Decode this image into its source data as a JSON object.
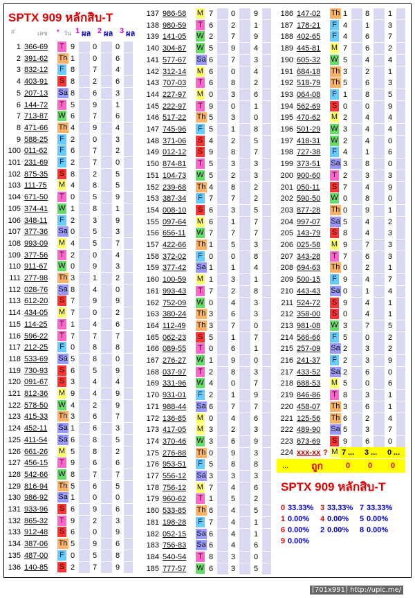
{
  "title": "SPTX 909 หลักสิบ-T",
  "title2": "SPTX 909 หลักสิบ-T",
  "header": {
    "hash": "#",
    "code": "เลข",
    "star": "*",
    "day": "วัน",
    "c1": "1",
    "r1": "ผล",
    "c2": "2",
    "r2": "ผล",
    "c3": "3",
    "r3": "ผล"
  },
  "day_colors": {
    "T": "#ff66cc",
    "Th": "#ffb266",
    "F": "#66ccff",
    "S": "#ff3333",
    "Sa": "#9999ff",
    "M": "#ffff66",
    "W": "#66dd66"
  },
  "rows1": [
    [
      "1",
      "366-69",
      "T",
      "9",
      "0",
      "0"
    ],
    [
      "2",
      "391-62",
      "Th",
      "1",
      "0",
      "6"
    ],
    [
      "3",
      "832-12",
      "F",
      "8",
      "7",
      "4"
    ],
    [
      "4",
      "403-91",
      "S",
      "8",
      "2",
      "6"
    ],
    [
      "5",
      "207-13",
      "Sa",
      "8",
      "6",
      "3"
    ],
    [
      "6",
      "144-72",
      "T",
      "5",
      "9",
      "1"
    ],
    [
      "7",
      "713-87",
      "W",
      "6",
      "7",
      "6"
    ],
    [
      "8",
      "471-66",
      "Th",
      "4",
      "9",
      "4"
    ],
    [
      "9",
      "588-25",
      "F",
      "2",
      "0",
      "3"
    ],
    [
      "100",
      "011-62",
      "F",
      "6",
      "7",
      "2"
    ],
    [
      "101",
      "231-69",
      "F",
      "2",
      "7",
      "0"
    ],
    [
      "102",
      "875-35",
      "S",
      "8",
      "2",
      "5"
    ],
    [
      "103",
      "111-75",
      "M",
      "4",
      "8",
      "5"
    ],
    [
      "104",
      "671-50",
      "T",
      "0",
      "5",
      "9"
    ],
    [
      "105",
      "374-41",
      "W",
      "1",
      "8",
      "1"
    ],
    [
      "106",
      "348-11",
      "F",
      "2",
      "3",
      "9"
    ],
    [
      "107",
      "377-36",
      "Sa",
      "0",
      "5",
      "3"
    ],
    [
      "108",
      "993-09",
      "M",
      "4",
      "5",
      "7"
    ],
    [
      "109",
      "377-56",
      "T",
      "2",
      "0",
      "4"
    ],
    [
      "110",
      "911-67",
      "W",
      "0",
      "9",
      "3"
    ],
    [
      "111",
      "277-98",
      "Th",
      "3",
      "1",
      "2"
    ],
    [
      "112",
      "028-76",
      "Sa",
      "8",
      "4",
      "0"
    ],
    [
      "113",
      "612-20",
      "S",
      "7",
      "9",
      "9"
    ],
    [
      "114",
      "434-05",
      "M",
      "7",
      "0",
      "2"
    ],
    [
      "115",
      "114-25",
      "T",
      "1",
      "4",
      "6"
    ],
    [
      "116",
      "596-22",
      "T",
      "7",
      "7",
      "7"
    ],
    [
      "117",
      "212-25",
      "F",
      "0",
      "8",
      "8"
    ],
    [
      "118",
      "533-69",
      "Sa",
      "5",
      "8",
      "0"
    ],
    [
      "119",
      "730-93",
      "S",
      "6",
      "5",
      "9"
    ],
    [
      "120",
      "091-67",
      "S",
      "3",
      "4",
      "4"
    ],
    [
      "121",
      "812-36",
      "M",
      "9",
      "4",
      "9"
    ],
    [
      "122",
      "578-50",
      "W",
      "4",
      "2",
      "9"
    ],
    [
      "123",
      "415-33",
      "Th",
      "3",
      "6",
      "7"
    ],
    [
      "124",
      "452-11",
      "Sa",
      "1",
      "6",
      "3"
    ],
    [
      "125",
      "411-54",
      "Sa",
      "6",
      "8",
      "5"
    ],
    [
      "126",
      "661-26",
      "M",
      "5",
      "8",
      "2"
    ],
    [
      "127",
      "456-15",
      "T",
      "9",
      "6",
      "6"
    ],
    [
      "128",
      "542-66",
      "W",
      "8",
      "7",
      "7"
    ],
    [
      "129",
      "816-94",
      "Th",
      "5",
      "6",
      "5"
    ],
    [
      "130",
      "986-92",
      "Sa",
      "1",
      "0",
      "0"
    ],
    [
      "131",
      "933-96",
      "S",
      "6",
      "9",
      "6"
    ],
    [
      "132",
      "865-32",
      "T",
      "9",
      "2",
      "3"
    ],
    [
      "133",
      "912-48",
      "S",
      "6",
      "0",
      "9"
    ],
    [
      "134",
      "387-06",
      "Th",
      "5",
      "9",
      "6"
    ],
    [
      "135",
      "487-00",
      "F",
      "0",
      "5",
      "8"
    ],
    [
      "136",
      "140-85",
      "S",
      "2",
      "7",
      "9"
    ]
  ],
  "rows2": [
    [
      "137",
      "986-58",
      "M",
      "7",
      "0",
      "9"
    ],
    [
      "138",
      "980-59",
      "T",
      "6",
      "2",
      "1"
    ],
    [
      "139",
      "141-05",
      "W",
      "2",
      "7",
      "9"
    ],
    [
      "140",
      "304-87",
      "W",
      "5",
      "9",
      "4"
    ],
    [
      "141",
      "577-67",
      "Sa",
      "6",
      "7",
      "3"
    ],
    [
      "142",
      "312-14",
      "M",
      "6",
      "0",
      "4"
    ],
    [
      "143",
      "707-03",
      "T",
      "6",
      "8",
      "2"
    ],
    [
      "144",
      "227-97",
      "M",
      "0",
      "3",
      "6"
    ],
    [
      "145",
      "222-97",
      "T",
      "9",
      "0",
      "1"
    ],
    [
      "146",
      "517-22",
      "Th",
      "5",
      "3",
      "0"
    ],
    [
      "147",
      "745-96",
      "F",
      "5",
      "1",
      "8"
    ],
    [
      "148",
      "371-06",
      "S",
      "4",
      "2",
      "5"
    ],
    [
      "149",
      "012-12",
      "S",
      "9",
      "8",
      "7"
    ],
    [
      "150",
      "874-81",
      "T",
      "5",
      "3",
      "3"
    ],
    [
      "151",
      "104-73",
      "W",
      "5",
      "2",
      "3"
    ],
    [
      "152",
      "239-68",
      "Th",
      "4",
      "8",
      "2"
    ],
    [
      "153",
      "387-34",
      "F",
      "7",
      "7",
      "2"
    ],
    [
      "154",
      "008-10",
      "S",
      "6",
      "3",
      "5"
    ],
    [
      "155",
      "097-64",
      "M",
      "6",
      "1",
      "7"
    ],
    [
      "156",
      "656-11",
      "W",
      "7",
      "7",
      "7"
    ],
    [
      "157",
      "422-66",
      "Th",
      "1",
      "5",
      "3"
    ],
    [
      "158",
      "372-02",
      "F",
      "0",
      "0",
      "8"
    ],
    [
      "159",
      "377-42",
      "Sa",
      "1",
      "1",
      "4"
    ],
    [
      "160",
      "100-59",
      "M",
      "1",
      "3",
      "1"
    ],
    [
      "161",
      "993-43",
      "T",
      "7",
      "2",
      "8"
    ],
    [
      "162",
      "752-09",
      "W",
      "0",
      "4",
      "3"
    ],
    [
      "163",
      "380-24",
      "Th",
      "3",
      "6",
      "3"
    ],
    [
      "164",
      "112-49",
      "Th",
      "3",
      "7",
      "0"
    ],
    [
      "165",
      "062-23",
      "S",
      "5",
      "1",
      "7"
    ],
    [
      "166",
      "089-55",
      "T",
      "0",
      "6",
      "1"
    ],
    [
      "167",
      "276-27",
      "W",
      "1",
      "9",
      "0"
    ],
    [
      "168",
      "037-97",
      "T",
      "2",
      "8",
      "3"
    ],
    [
      "169",
      "331-96",
      "W",
      "4",
      "0",
      "7"
    ],
    [
      "170",
      "931-01",
      "F",
      "2",
      "1",
      "9"
    ],
    [
      "171",
      "988-44",
      "Sa",
      "6",
      "7",
      "7"
    ],
    [
      "172",
      "136-85",
      "M",
      "0",
      "4",
      "6"
    ],
    [
      "173",
      "417-05",
      "M",
      "3",
      "2",
      "3"
    ],
    [
      "174",
      "370-46",
      "W",
      "3",
      "6",
      "9"
    ],
    [
      "175",
      "276-88",
      "Th",
      "0",
      "9",
      "3"
    ],
    [
      "176",
      "953-51",
      "F",
      "5",
      "8",
      "8"
    ],
    [
      "177",
      "556-12",
      "Sa",
      "3",
      "3",
      "3"
    ],
    [
      "178",
      "756-12",
      "M",
      "7",
      "4",
      "6"
    ],
    [
      "179",
      "960-62",
      "T",
      "1",
      "5",
      "2"
    ],
    [
      "180",
      "533-85",
      "Th",
      "6",
      "4",
      "5"
    ],
    [
      "181",
      "198-28",
      "F",
      "7",
      "4",
      "1"
    ],
    [
      "182",
      "052-15",
      "Sa",
      "6",
      "4",
      "1"
    ],
    [
      "183",
      "756-83",
      "Sa",
      "6",
      "4",
      "6"
    ],
    [
      "184",
      "540-54",
      "T",
      "8",
      "3",
      "0"
    ],
    [
      "185",
      "777-57",
      "W",
      "6",
      "3",
      "5"
    ]
  ],
  "rows3": [
    [
      "186",
      "147-02",
      "Th",
      "1",
      "8",
      "1"
    ],
    [
      "187",
      "178-21",
      "F",
      "4",
      "1",
      "3"
    ],
    [
      "188",
      "402-65",
      "F",
      "4",
      "6",
      "7"
    ],
    [
      "189",
      "445-81",
      "M",
      "7",
      "6",
      "2"
    ],
    [
      "190",
      "605-32",
      "W",
      "5",
      "4",
      "4"
    ],
    [
      "191",
      "684-18",
      "Th",
      "3",
      "2",
      "1"
    ],
    [
      "192",
      "518-79",
      "Th",
      "5",
      "6",
      "3"
    ],
    [
      "193",
      "064-08",
      "F",
      "1",
      "8",
      "5"
    ],
    [
      "194",
      "562-69",
      "S",
      "0",
      "0",
      "9"
    ],
    [
      "195",
      "470-62",
      "M",
      "2",
      "4",
      "4"
    ],
    [
      "196",
      "501-29",
      "W",
      "3",
      "4",
      "4"
    ],
    [
      "197",
      "418-31",
      "W",
      "2",
      "4",
      "0"
    ],
    [
      "198",
      "727-38",
      "F",
      "4",
      "1",
      "6"
    ],
    [
      "199",
      "373-51",
      "Sa",
      "3",
      "8",
      "0"
    ],
    [
      "200",
      "900-60",
      "T",
      "2",
      "3",
      "3"
    ],
    [
      "201",
      "050-11",
      "S",
      "7",
      "4",
      "9"
    ],
    [
      "202",
      "590-50",
      "W",
      "0",
      "8",
      "0"
    ],
    [
      "203",
      "877-28",
      "Th",
      "0",
      "9",
      "1"
    ],
    [
      "204",
      "997-07",
      "Sa",
      "5",
      "4",
      "2"
    ],
    [
      "205",
      "143-79",
      "S",
      "8",
      "4",
      "3"
    ],
    [
      "206",
      "025-58",
      "M",
      "9",
      "7",
      "3"
    ],
    [
      "207",
      "343-28",
      "T",
      "7",
      "6",
      "3"
    ],
    [
      "208",
      "694-63",
      "Th",
      "0",
      "2",
      "1"
    ],
    [
      "209",
      "500-15",
      "F",
      "9",
      "4",
      "7"
    ],
    [
      "210",
      "443-43",
      "Sa",
      "0",
      "1",
      "4"
    ],
    [
      "211",
      "524-72",
      "S",
      "9",
      "4",
      "1"
    ],
    [
      "212",
      "358-00",
      "S",
      "0",
      "4",
      "1"
    ],
    [
      "213",
      "981-08",
      "W",
      "3",
      "7",
      "5"
    ],
    [
      "214",
      "566-66",
      "F",
      "5",
      "0",
      "2"
    ],
    [
      "215",
      "257-09",
      "Sa",
      "2",
      "3",
      "2"
    ],
    [
      "216",
      "241-37",
      "F",
      "2",
      "3",
      "9"
    ],
    [
      "217",
      "433-52",
      "Sa",
      "2",
      "6",
      "0"
    ],
    [
      "218",
      "688-53",
      "M",
      "5",
      "0",
      "6"
    ],
    [
      "219",
      "846-86",
      "T",
      "8",
      "3",
      "1"
    ],
    [
      "220",
      "458-07",
      "Th",
      "3",
      "6",
      "1"
    ],
    [
      "221",
      "125-56",
      "Th",
      "6",
      "2",
      "4"
    ],
    [
      "222",
      "489-90",
      "Sa",
      "5",
      "3",
      "7"
    ],
    [
      "223",
      "673-69",
      "S",
      "9",
      "6",
      "0"
    ]
  ],
  "last_row": {
    "no": "224",
    "code": "xxx-xx",
    "q": "?",
    "day": "M",
    "r1": "7",
    "dots1": "...",
    "r2": "3",
    "dots2": "...",
    "r3": "0",
    "dots3": "..."
  },
  "correct_row": {
    "dots": "...",
    "label": "ถูก",
    "v1": "0",
    "v2": "0",
    "v3": "0"
  },
  "stats": [
    [
      {
        "d": "0",
        "p": "33.33%",
        "c": "#e00000"
      },
      {
        "d": "3",
        "p": "33.33%",
        "c": "#e00000"
      },
      {
        "d": "7",
        "p": "33.33%",
        "c": "#0000cc"
      }
    ],
    [
      {
        "d": "1",
        "p": "0.00%",
        "c": "#e00000"
      },
      {
        "d": "4",
        "p": "0.00%",
        "c": "#e00000"
      },
      {
        "d": "5",
        "p": "0.00%",
        "c": "#0000cc"
      }
    ],
    [
      {
        "d": "6",
        "p": "0.00%",
        "c": "#e00000"
      },
      {
        "d": "2",
        "p": "0.00%",
        "c": "#0000cc"
      },
      {
        "d": "8",
        "p": "0.00%",
        "c": "#0000cc"
      }
    ],
    [
      {
        "d": "9",
        "p": "0.00%",
        "c": "#e00000"
      }
    ]
  ],
  "watermark": "[701x991] http://upic.me/"
}
